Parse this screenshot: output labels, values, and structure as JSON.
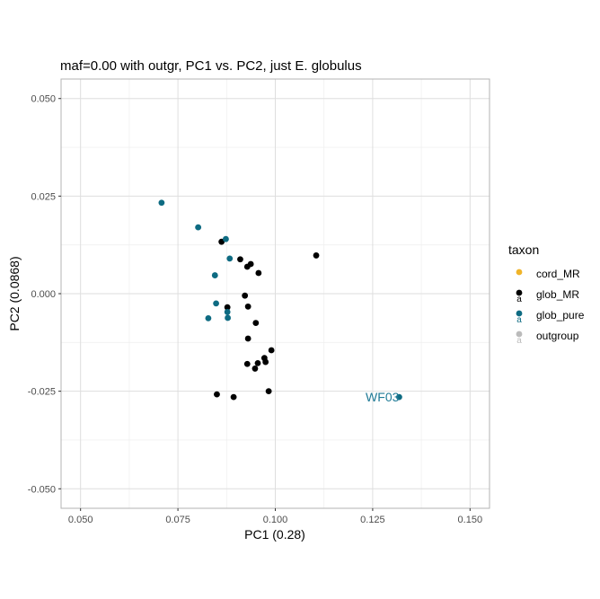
{
  "chart_data": {
    "type": "scatter",
    "title": "maf=0.00 with outgr, PC1 vs. PC2, just E. globulus",
    "xlabel": "PC1 (0.28)",
    "ylabel": "PC2 (0.0868)",
    "xlim": [
      0.045,
      0.155
    ],
    "ylim": [
      -0.055,
      0.055
    ],
    "x_major_ticks": [
      0.05,
      0.075,
      0.1,
      0.125,
      0.15
    ],
    "x_minor_ticks": [
      0.0625,
      0.0875,
      0.1125,
      0.1375
    ],
    "x_tick_labels": [
      "0.050",
      "0.075",
      "0.100",
      "0.125",
      "0.150"
    ],
    "y_major_ticks": [
      0.05,
      0.025,
      0.0,
      -0.025,
      -0.05
    ],
    "y_minor_ticks": [
      0.0375,
      0.0125,
      -0.0125,
      -0.0375
    ],
    "y_tick_labels": [
      "0.050",
      "0.025",
      "0.000",
      "-0.025",
      "-0.050"
    ],
    "grid": true,
    "legend": {
      "title": "taxon",
      "position": "right",
      "entries": [
        {
          "label": "cord_MR",
          "color": "#F0B429",
          "key_text": ""
        },
        {
          "label": "glob_MR",
          "color": "#000000",
          "key_text": "a"
        },
        {
          "label": "glob_pure",
          "color": "#0E6B82",
          "key_text": "a"
        },
        {
          "label": "outgroup",
          "color": "#BBBBBB",
          "key_text": "a"
        }
      ]
    },
    "series": [
      {
        "name": "glob_MR",
        "color": "#000000",
        "points": [
          {
            "x": 0.0862,
            "y": 0.0133
          },
          {
            "x": 0.091,
            "y": 0.0088
          },
          {
            "x": 0.0937,
            "y": 0.0076
          },
          {
            "x": 0.0928,
            "y": 0.0069
          },
          {
            "x": 0.0957,
            "y": 0.0053
          },
          {
            "x": 0.1105,
            "y": 0.0098
          },
          {
            "x": 0.0922,
            "y": -0.0005
          },
          {
            "x": 0.093,
            "y": -0.0033
          },
          {
            "x": 0.0877,
            "y": -0.0035
          },
          {
            "x": 0.095,
            "y": -0.0075
          },
          {
            "x": 0.093,
            "y": -0.0115
          },
          {
            "x": 0.099,
            "y": -0.0145
          },
          {
            "x": 0.0972,
            "y": -0.0165
          },
          {
            "x": 0.0975,
            "y": -0.0175
          },
          {
            "x": 0.0955,
            "y": -0.0178
          },
          {
            "x": 0.0928,
            "y": -0.018
          },
          {
            "x": 0.0948,
            "y": -0.0192
          },
          {
            "x": 0.085,
            "y": -0.0258
          },
          {
            "x": 0.0893,
            "y": -0.0265
          },
          {
            "x": 0.0983,
            "y": -0.025
          }
        ]
      },
      {
        "name": "glob_pure",
        "color": "#0E6B82",
        "points": [
          {
            "x": 0.0708,
            "y": 0.0233
          },
          {
            "x": 0.0802,
            "y": 0.017
          },
          {
            "x": 0.0873,
            "y": 0.014
          },
          {
            "x": 0.0883,
            "y": 0.009
          },
          {
            "x": 0.0845,
            "y": 0.0047
          },
          {
            "x": 0.0848,
            "y": -0.0025
          },
          {
            "x": 0.0877,
            "y": -0.0047
          },
          {
            "x": 0.0878,
            "y": -0.0062
          },
          {
            "x": 0.0828,
            "y": -0.0063
          },
          {
            "x": 0.1318,
            "y": -0.0265
          }
        ]
      }
    ],
    "annotations": [
      {
        "text": "WF03",
        "x": 0.1318,
        "y": -0.0265,
        "color": "#1F7A96",
        "anchor": "end"
      }
    ]
  }
}
